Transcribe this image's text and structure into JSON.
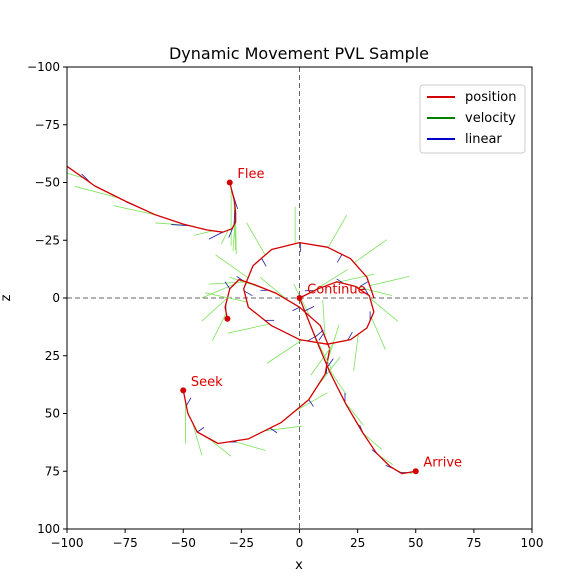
{
  "chart_data": {
    "type": "line",
    "title": "Dynamic Movement PVL Sample",
    "xlabel": "x",
    "ylabel": "z",
    "xlim": [
      -100,
      100
    ],
    "ylim": [
      100,
      -100
    ],
    "y_inverted": true,
    "xticks": [
      -100,
      -75,
      -50,
      -25,
      0,
      25,
      50,
      75,
      100
    ],
    "yticks": [
      -100,
      -75,
      -50,
      -25,
      0,
      25,
      50,
      75,
      100
    ],
    "grid": false,
    "reference_lines": {
      "x": 0,
      "z": 0,
      "style": "dashed"
    },
    "legend": {
      "position": "top-right",
      "entries": [
        {
          "label": "position",
          "color": "#d40000"
        },
        {
          "label": "velocity",
          "color": "#008000"
        },
        {
          "label": "linear",
          "color": "#0000cc"
        }
      ]
    },
    "colors": {
      "position": "#d40000",
      "velocity_drawn": "#7be35a",
      "linear": "#1a1aa8",
      "annotation": "#e00000"
    },
    "series": [
      {
        "name": "Flee",
        "start": [
          -30,
          -50
        ],
        "position": [
          [
            -30,
            -50
          ],
          [
            -29,
            -46
          ],
          [
            -28,
            -42
          ],
          [
            -27.5,
            -37
          ],
          [
            -27.5,
            -33
          ],
          [
            -29,
            -30
          ],
          [
            -33,
            -28.5
          ],
          [
            -40,
            -29.5
          ],
          [
            -50,
            -32
          ],
          [
            -62,
            -36
          ],
          [
            -75,
            -42
          ],
          [
            -88,
            -48.5
          ],
          [
            -100,
            -57
          ]
        ],
        "velocity": [
          [
            0,
            25
          ],
          [
            0.7,
            22
          ],
          [
            0.3,
            18
          ],
          [
            -0.8,
            12
          ],
          [
            -3,
            6
          ],
          [
            -8,
            2
          ],
          [
            -14,
            -1
          ],
          [
            -18,
            -4
          ],
          [
            -19,
            -5
          ],
          [
            -20,
            -6
          ]
        ],
        "linear": [
          [
            2.5,
            8
          ],
          [
            -0.5,
            8
          ],
          [
            -2.5,
            6
          ],
          [
            -6,
            3
          ],
          [
            -8,
            -0.5
          ],
          [
            -7,
            -3
          ],
          [
            -4,
            -4
          ]
        ]
      },
      {
        "name": "Seek",
        "start": [
          -50,
          40
        ],
        "position": [
          [
            -50,
            40
          ],
          [
            -48,
            50
          ],
          [
            -44,
            58
          ],
          [
            -35,
            63
          ],
          [
            -22,
            61
          ],
          [
            -8,
            54
          ],
          [
            4,
            44
          ],
          [
            11,
            33
          ],
          [
            13,
            22
          ],
          [
            9,
            12
          ],
          [
            0,
            4
          ],
          [
            -10,
            -2
          ],
          [
            -20,
            -6
          ],
          [
            -26,
            -8
          ],
          [
            -30,
            -4
          ],
          [
            -32,
            4
          ],
          [
            -31,
            9
          ]
        ],
        "velocity": [
          [
            0,
            18
          ],
          [
            4,
            14
          ],
          [
            10,
            8
          ],
          [
            14,
            4
          ],
          [
            16,
            -2
          ],
          [
            14,
            -8
          ],
          [
            10,
            -13
          ],
          [
            5,
            -16
          ],
          [
            -1,
            -16
          ],
          [
            -7,
            -14
          ],
          [
            -12,
            -10
          ],
          [
            -15,
            -5
          ],
          [
            -16,
            1
          ],
          [
            -14,
            6
          ],
          [
            -11,
            10
          ],
          [
            -6,
            12
          ]
        ],
        "linear": [
          [
            2,
            -3.5
          ],
          [
            3,
            -2
          ],
          [
            3.5,
            0
          ],
          [
            3,
            2
          ],
          [
            2,
            3
          ],
          [
            0,
            3.5
          ],
          [
            -2,
            3
          ],
          [
            -3,
            1.5
          ],
          [
            -3.5,
            0
          ],
          [
            -3,
            -2
          ],
          [
            -2,
            -3
          ],
          [
            0,
            -3.5
          ]
        ]
      },
      {
        "name": "Continue",
        "start": [
          0,
          0
        ],
        "position": [
          [
            0,
            0
          ],
          [
            8,
            -4
          ],
          [
            16,
            -7
          ],
          [
            24,
            -5
          ],
          [
            30,
            -1
          ],
          [
            32,
            6
          ],
          [
            29,
            13
          ],
          [
            22,
            18
          ],
          [
            12,
            20
          ],
          [
            0,
            18
          ],
          [
            -12,
            12
          ],
          [
            -22,
            4
          ],
          [
            -24,
            -4
          ],
          [
            -20,
            -14
          ],
          [
            -12,
            -21
          ],
          [
            0,
            -24
          ],
          [
            12,
            -22
          ],
          [
            22,
            -17
          ],
          [
            29,
            -9
          ],
          [
            32,
            0
          ]
        ],
        "velocity": [
          [
            16,
            -10
          ],
          [
            18,
            -4
          ],
          [
            16,
            4
          ],
          [
            12,
            10
          ],
          [
            6,
            14
          ],
          [
            -2,
            16
          ],
          [
            -10,
            14
          ],
          [
            -15,
            10
          ],
          [
            -18,
            4
          ],
          [
            -18,
            -4
          ],
          [
            -14,
            -10
          ],
          [
            -8,
            -14
          ],
          [
            0,
            -16
          ],
          [
            8,
            -14
          ],
          [
            14,
            -10
          ],
          [
            17,
            -4
          ]
        ],
        "linear": [
          [
            -4,
            0
          ],
          [
            -3,
            -2
          ],
          [
            -2,
            -3.5
          ],
          [
            0,
            -4
          ],
          [
            2,
            -3.5
          ],
          [
            3.5,
            -2
          ],
          [
            4,
            0
          ],
          [
            3.5,
            2
          ],
          [
            2,
            3.5
          ],
          [
            0,
            4
          ],
          [
            -2,
            3.5
          ],
          [
            -3.5,
            2
          ]
        ]
      },
      {
        "name": "Arrive",
        "start": [
          50,
          75
        ],
        "position": [
          [
            0,
            0
          ],
          [
            4,
            10
          ],
          [
            8,
            20
          ],
          [
            13,
            32
          ],
          [
            20,
            46
          ],
          [
            27,
            58
          ],
          [
            33,
            67
          ],
          [
            39,
            73
          ],
          [
            44,
            76
          ],
          [
            50,
            75
          ]
        ],
        "velocity": [
          [
            5,
            13
          ],
          [
            7,
            14
          ],
          [
            8,
            12
          ],
          [
            8,
            10
          ],
          [
            8,
            7
          ],
          [
            6,
            4
          ],
          [
            4,
            2
          ],
          [
            2,
            0.5
          ]
        ],
        "linear": [
          [
            4,
            -2
          ],
          [
            3.5,
            -3
          ],
          [
            2.5,
            -3.5
          ],
          [
            0,
            -4
          ],
          [
            -1.5,
            -3.5
          ],
          [
            -3,
            -2.5
          ],
          [
            -3.5,
            -1.5
          ],
          [
            -3.5,
            0
          ]
        ]
      }
    ],
    "markers": [
      [
        -30,
        -50
      ],
      [
        -50,
        40
      ],
      [
        0,
        0
      ],
      [
        50,
        75
      ],
      [
        -31,
        9
      ]
    ],
    "annotations": [
      {
        "text": "Flee",
        "x": -28,
        "z": -52
      },
      {
        "text": "Seek",
        "x": -48,
        "z": 38
      },
      {
        "text": "Continue",
        "x": 2,
        "z": -2
      },
      {
        "text": "Arrive",
        "x": 52,
        "z": 73
      }
    ]
  }
}
